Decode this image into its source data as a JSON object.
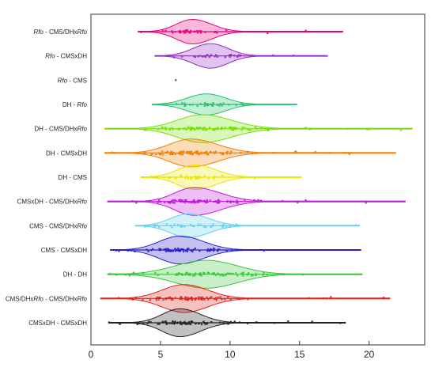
{
  "chart_data": {
    "type": "violin",
    "orientation": "horizontal",
    "title": "",
    "xlabel": "",
    "ylabel": "",
    "xlim": [
      0,
      24
    ],
    "xticks": [
      0,
      5,
      10,
      15,
      20
    ],
    "grid": false,
    "legend": "none",
    "categories": [
      {
        "label": "Rfo - CMS/DHxRfo",
        "prefix": "",
        "italic": "Rfo",
        "suffix": " - CMS/DHx",
        "italic2": "Rfo",
        "suffix2": "",
        "color": "#e6007e",
        "min": 3.4,
        "max": 18.1,
        "q1": 6.2,
        "median": 7.3,
        "q3": 8.6,
        "peak": 7.3,
        "width": 0.72,
        "density": 35
      },
      {
        "label": "Rfo - CMSxDH",
        "prefix": "",
        "italic": "Rfo",
        "suffix": " - CMSxDH",
        "italic2": "",
        "suffix2": "",
        "color": "#8e2bbd",
        "min": 4.6,
        "max": 17.0,
        "q1": 7.4,
        "median": 8.6,
        "q3": 9.8,
        "peak": 8.6,
        "width": 0.72,
        "density": 30
      },
      {
        "label": "Rfo - CMS",
        "prefix": "",
        "italic": "Rfo",
        "suffix": " - CMS",
        "italic2": "",
        "suffix2": "",
        "color": "#7a1f9e",
        "min": 6.1,
        "max": 6.1,
        "q1": 6.1,
        "median": 6.1,
        "q3": 6.1,
        "peak": 6.1,
        "width": 0.0,
        "density": 1
      },
      {
        "label": "DH - Rfo",
        "prefix": "DH - ",
        "italic": "Rfo",
        "suffix": "",
        "italic2": "",
        "suffix2": "",
        "color": "#23c26a",
        "min": 4.4,
        "max": 14.8,
        "q1": 7.0,
        "median": 8.3,
        "q3": 9.6,
        "peak": 8.3,
        "width": 0.62,
        "density": 30
      },
      {
        "label": "DH - CMS/DHxRfo",
        "prefix": "DH - CMS/DHx",
        "italic": "Rfo",
        "suffix": "",
        "italic2": "",
        "suffix2": "",
        "color": "#76e00a",
        "min": 1.0,
        "max": 23.1,
        "q1": 6.3,
        "median": 8.0,
        "q3": 10.0,
        "peak": 8.0,
        "width": 0.82,
        "density": 90
      },
      {
        "label": "DH - CMSxDH",
        "prefix": "DH - CMSxDH",
        "italic": "",
        "suffix": "",
        "italic2": "",
        "suffix2": "",
        "color": "#f57f00",
        "min": 1.0,
        "max": 21.9,
        "q1": 5.7,
        "median": 7.2,
        "q3": 9.0,
        "peak": 7.2,
        "width": 0.82,
        "density": 90
      },
      {
        "label": "DH - CMS",
        "prefix": "DH - CMS",
        "italic": "",
        "suffix": "",
        "italic2": "",
        "suffix2": "",
        "color": "#e8e600",
        "min": 3.6,
        "max": 15.1,
        "q1": 6.3,
        "median": 7.5,
        "q3": 8.9,
        "peak": 7.5,
        "width": 0.72,
        "density": 35
      },
      {
        "label": "CMSxDH - CMS/DHxRfo",
        "prefix": "CMSxDH - CMS/DHx",
        "italic": "Rfo",
        "suffix": "",
        "italic2": "",
        "suffix2": "",
        "color": "#c019d8",
        "min": 1.2,
        "max": 22.6,
        "q1": 6.1,
        "median": 7.4,
        "q3": 9.2,
        "peak": 7.4,
        "width": 0.82,
        "density": 90
      },
      {
        "label": "CMS - CMS/DHxRfo",
        "prefix": "CMS - CMS/DHx",
        "italic": "Rfo",
        "suffix": "",
        "italic2": "",
        "suffix2": "",
        "color": "#5fd0ee",
        "min": 3.2,
        "max": 19.3,
        "q1": 5.8,
        "median": 7.0,
        "q3": 8.4,
        "peak": 7.0,
        "width": 0.7,
        "density": 35
      },
      {
        "label": "CMS - CMSxDH",
        "prefix": "CMS - CMSxDH",
        "italic": "",
        "suffix": "",
        "italic2": "",
        "suffix2": "",
        "color": "#2a1fc8",
        "min": 1.4,
        "max": 19.4,
        "q1": 5.0,
        "median": 6.4,
        "q3": 8.0,
        "peak": 6.4,
        "width": 0.82,
        "density": 70
      },
      {
        "label": "DH - DH",
        "prefix": "DH - DH",
        "italic": "",
        "suffix": "",
        "italic2": "",
        "suffix2": "",
        "color": "#3cc43c",
        "min": 1.2,
        "max": 19.5,
        "q1": 6.2,
        "median": 8.3,
        "q3": 10.4,
        "peak": 8.3,
        "width": 0.82,
        "density": 80
      },
      {
        "label": "CMS/DHxRfo - CMS/DHxRfo",
        "prefix": "CMS/DHx",
        "italic": "Rfo",
        "suffix": " - CMS/DHx",
        "italic2": "Rfo",
        "suffix2": "",
        "color": "#e0241d",
        "min": 0.7,
        "max": 21.5,
        "q1": 5.2,
        "median": 6.7,
        "q3": 8.3,
        "peak": 6.7,
        "width": 0.82,
        "density": 80
      },
      {
        "label": "CMSxDH - CMSxDH",
        "prefix": "CMSxDH - CMSxDH",
        "italic": "",
        "suffix": "",
        "italic2": "",
        "suffix2": "",
        "color": "#222222",
        "min": 1.3,
        "max": 18.3,
        "q1": 5.2,
        "median": 6.4,
        "q3": 7.8,
        "peak": 6.4,
        "width": 0.82,
        "density": 70
      }
    ]
  }
}
